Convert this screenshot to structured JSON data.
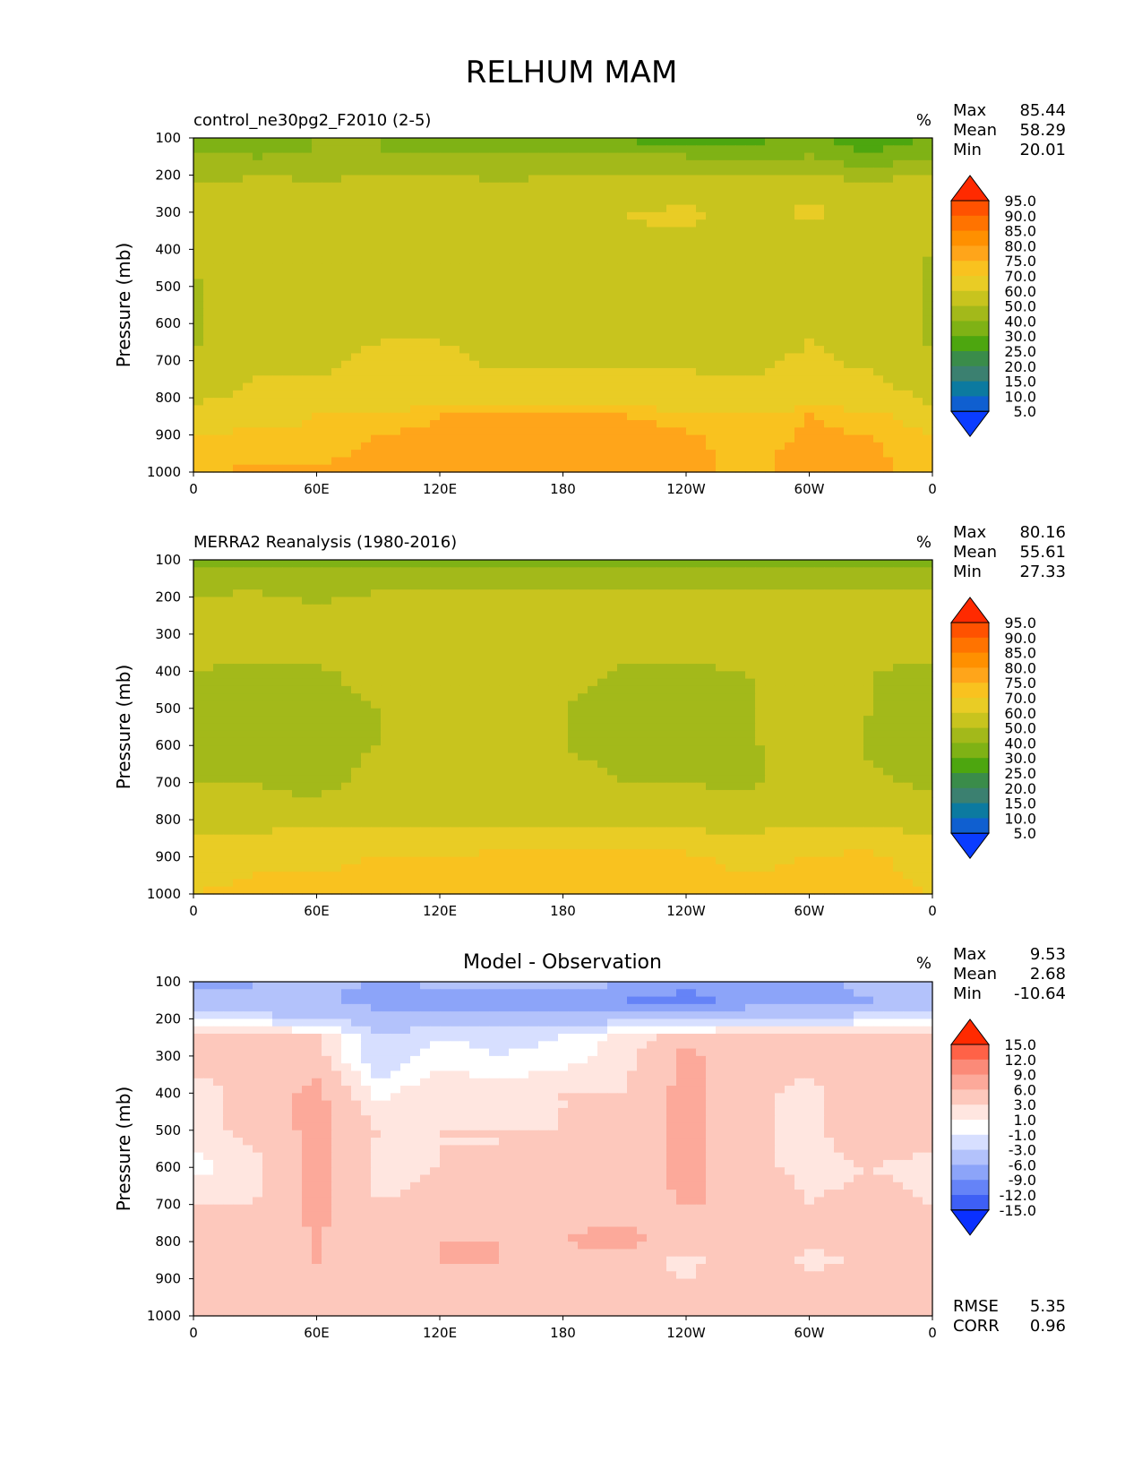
{
  "figure": {
    "title": "RELHUM MAM"
  },
  "panels": [
    {
      "id": "model",
      "title": "control_ne30pg2_F2010 (2-5)",
      "title_align": "left",
      "units": "%",
      "stats": [
        {
          "label": "Max",
          "value": "85.44"
        },
        {
          "label": "Mean",
          "value": "58.29"
        },
        {
          "label": "Min",
          "value": "20.01"
        }
      ],
      "colorbar": {
        "levels": [
          "95.0",
          "90.0",
          "85.0",
          "80.0",
          "75.0",
          "70.0",
          "60.0",
          "50.0",
          "40.0",
          "30.0",
          "25.0",
          "20.0",
          "15.0",
          "10.0",
          "5.0"
        ],
        "colors": [
          "#ff2a00",
          "#ff5200",
          "#ff7300",
          "#ff9000",
          "#ffa51a",
          "#f9c21f",
          "#e9cc25",
          "#c8c41e",
          "#a3b91a",
          "#7fb215",
          "#4da60f",
          "#3a8c4a",
          "#3b8070",
          "#0c7aa0",
          "#0f5fd0",
          "#0a3cff"
        ]
      }
    },
    {
      "id": "obs",
      "title": "MERRA2 Reanalysis (1980-2016)",
      "title_align": "left",
      "units": "%",
      "stats": [
        {
          "label": "Max",
          "value": "80.16"
        },
        {
          "label": "Mean",
          "value": "55.61"
        },
        {
          "label": "Min",
          "value": "27.33"
        }
      ],
      "colorbar": {
        "levels": [
          "95.0",
          "90.0",
          "85.0",
          "80.0",
          "75.0",
          "70.0",
          "60.0",
          "50.0",
          "40.0",
          "30.0",
          "25.0",
          "20.0",
          "15.0",
          "10.0",
          "5.0"
        ],
        "colors": [
          "#ff2a00",
          "#ff5200",
          "#ff7300",
          "#ff9000",
          "#ffa51a",
          "#f9c21f",
          "#e9cc25",
          "#c8c41e",
          "#a3b91a",
          "#7fb215",
          "#4da60f",
          "#3a8c4a",
          "#3b8070",
          "#0c7aa0",
          "#0f5fd0",
          "#0a3cff"
        ]
      }
    },
    {
      "id": "diff",
      "title": "Model - Observation",
      "title_align": "center",
      "units": "%",
      "stats": [
        {
          "label": "Max",
          "value": "9.53"
        },
        {
          "label": "Mean",
          "value": "2.68"
        },
        {
          "label": "Min",
          "value": "-10.64"
        }
      ],
      "extra_stats": [
        {
          "label": "RMSE",
          "value": "5.35"
        },
        {
          "label": "CORR",
          "value": "0.96"
        }
      ],
      "colorbar": {
        "levels": [
          "15.0",
          "12.0",
          "9.0",
          "6.0",
          "3.0",
          "1.0",
          "-1.0",
          "-3.0",
          "-6.0",
          "-9.0",
          "-12.0",
          "-15.0"
        ],
        "colors": [
          "#ff2a00",
          "#ff6247",
          "#fb8a78",
          "#fca99a",
          "#fdc8bc",
          "#ffe6e0",
          "#ffffff",
          "#d7dfff",
          "#b3c2fb",
          "#8ca4f9",
          "#6583f7",
          "#3e5ff5",
          "#0a30ff"
        ]
      }
    }
  ],
  "chart_data": [
    {
      "type": "heatmap",
      "title": "control_ne30pg2_F2010 (2-5)",
      "ylabel": "Pressure (mb)",
      "x_tick_labels": [
        "0",
        "60E",
        "120E",
        "180",
        "120W",
        "60W",
        "0"
      ],
      "y_tick_labels": [
        "100",
        "200",
        "300",
        "400",
        "500",
        "600",
        "700",
        "800",
        "900",
        "1000"
      ],
      "ylim": [
        100,
        1000
      ],
      "y_inverted": true,
      "x": [
        0,
        30,
        60,
        90,
        120,
        150,
        180,
        210,
        240,
        270,
        300,
        330,
        360
      ],
      "y": [
        100,
        150,
        200,
        250,
        300,
        400,
        500,
        600,
        700,
        800,
        850,
        900,
        950,
        1000
      ],
      "z": [
        [
          30,
          35,
          40,
          40,
          38,
          35,
          38,
          28,
          25,
          28,
          30,
          25,
          30
        ],
        [
          40,
          40,
          40,
          40,
          40,
          40,
          40,
          40,
          40,
          35,
          40,
          30,
          40
        ],
        [
          45,
          50,
          48,
          50,
          50,
          48,
          50,
          50,
          50,
          50,
          50,
          48,
          50
        ],
        [
          55,
          55,
          55,
          55,
          55,
          55,
          55,
          55,
          55,
          55,
          55,
          55,
          55
        ],
        [
          58,
          58,
          58,
          58,
          58,
          58,
          58,
          60,
          62,
          58,
          62,
          58,
          58
        ],
        [
          55,
          58,
          50,
          58,
          58,
          58,
          58,
          58,
          58,
          50,
          50,
          55,
          50
        ],
        [
          48,
          58,
          50,
          58,
          58,
          58,
          58,
          58,
          58,
          50,
          50,
          58,
          48
        ],
        [
          48,
          58,
          58,
          58,
          58,
          58,
          58,
          58,
          58,
          50,
          58,
          58,
          48
        ],
        [
          50,
          58,
          58,
          62,
          62,
          58,
          58,
          58,
          58,
          58,
          62,
          58,
          50
        ],
        [
          58,
          62,
          62,
          65,
          65,
          65,
          65,
          65,
          65,
          62,
          65,
          65,
          58
        ],
        [
          65,
          65,
          70,
          72,
          75,
          75,
          75,
          75,
          72,
          70,
          75,
          72,
          65
        ],
        [
          70,
          72,
          72,
          75,
          76,
          78,
          80,
          78,
          76,
          72,
          76,
          75,
          70
        ],
        [
          72,
          74,
          74,
          76,
          78,
          78,
          78,
          78,
          76,
          74,
          76,
          76,
          72
        ],
        [
          74,
          76,
          76,
          76,
          78,
          78,
          78,
          78,
          76,
          74,
          76,
          76,
          74
        ]
      ]
    },
    {
      "type": "heatmap",
      "title": "MERRA2 Reanalysis (1980-2016)",
      "ylabel": "Pressure (mb)",
      "x_tick_labels": [
        "0",
        "60E",
        "120E",
        "180",
        "120W",
        "60W",
        "0"
      ],
      "y_tick_labels": [
        "100",
        "200",
        "300",
        "400",
        "500",
        "600",
        "700",
        "800",
        "900",
        "1000"
      ],
      "ylim": [
        100,
        1000
      ],
      "y_inverted": true,
      "x": [
        0,
        30,
        60,
        90,
        120,
        150,
        180,
        210,
        240,
        270,
        300,
        330,
        360
      ],
      "y": [
        100,
        150,
        200,
        250,
        300,
        400,
        500,
        600,
        700,
        800,
        850,
        900,
        950,
        1000
      ],
      "z": [
        [
          35,
          35,
          38,
          38,
          38,
          38,
          38,
          35,
          35,
          38,
          38,
          38,
          35
        ],
        [
          45,
          45,
          42,
          45,
          45,
          45,
          45,
          45,
          45,
          45,
          45,
          45,
          45
        ],
        [
          50,
          52,
          48,
          52,
          52,
          52,
          52,
          52,
          52,
          52,
          52,
          52,
          52
        ],
        [
          55,
          55,
          52,
          55,
          55,
          55,
          55,
          55,
          55,
          55,
          55,
          55,
          55
        ],
        [
          55,
          58,
          58,
          58,
          58,
          58,
          58,
          58,
          58,
          58,
          58,
          58,
          55
        ],
        [
          50,
          48,
          48,
          55,
          58,
          58,
          55,
          48,
          48,
          50,
          58,
          50,
          48
        ],
        [
          48,
          45,
          45,
          50,
          58,
          58,
          50,
          45,
          45,
          48,
          58,
          50,
          45
        ],
        [
          48,
          45,
          45,
          50,
          58,
          58,
          50,
          45,
          45,
          48,
          58,
          48,
          45
        ],
        [
          50,
          50,
          45,
          55,
          58,
          58,
          55,
          50,
          50,
          48,
          55,
          52,
          48
        ],
        [
          55,
          55,
          58,
          58,
          58,
          58,
          58,
          58,
          58,
          55,
          58,
          58,
          55
        ],
        [
          60,
          62,
          65,
          65,
          65,
          65,
          65,
          65,
          62,
          62,
          65,
          65,
          60
        ],
        [
          65,
          68,
          68,
          70,
          70,
          72,
          74,
          74,
          72,
          68,
          70,
          72,
          65
        ],
        [
          68,
          70,
          70,
          72,
          72,
          72,
          74,
          74,
          72,
          70,
          72,
          72,
          68
        ],
        [
          70,
          72,
          72,
          72,
          72,
          72,
          74,
          74,
          72,
          72,
          72,
          72,
          70
        ]
      ]
    },
    {
      "type": "heatmap",
      "title": "Model - Observation",
      "ylabel": "Pressure (mb)",
      "x_tick_labels": [
        "0",
        "60E",
        "120E",
        "180",
        "120W",
        "60W",
        "0"
      ],
      "y_tick_labels": [
        "100",
        "200",
        "300",
        "400",
        "500",
        "600",
        "700",
        "800",
        "900",
        "1000"
      ],
      "ylim": [
        100,
        1000
      ],
      "y_inverted": true,
      "x": [
        0,
        30,
        60,
        90,
        120,
        150,
        180,
        210,
        240,
        270,
        300,
        330,
        360
      ],
      "y": [
        100,
        150,
        200,
        250,
        300,
        400,
        500,
        600,
        700,
        800,
        850,
        900,
        950,
        1000
      ],
      "z": [
        [
          -7,
          -6,
          -5,
          -6,
          -5,
          -4,
          -4,
          -6,
          -8,
          -6,
          -7,
          -5,
          -6
        ],
        [
          -4,
          -6,
          -5,
          -8,
          -9,
          -9,
          -8,
          -9,
          -10,
          -8,
          -7,
          -6,
          -5
        ],
        [
          -2,
          -2,
          -3,
          -4,
          -5,
          -4,
          -4,
          -4,
          -4,
          -3,
          -3,
          -2,
          -2
        ],
        [
          4,
          4,
          3,
          -3,
          -1,
          -2,
          -1,
          2,
          4,
          4,
          4,
          4,
          4
        ],
        [
          4,
          4,
          4,
          -3,
          0,
          -1,
          0,
          2,
          7,
          4,
          4,
          5,
          4
        ],
        [
          2,
          4,
          7,
          0,
          3,
          2,
          3,
          3,
          7,
          4,
          2,
          6,
          4
        ],
        [
          2,
          4,
          7,
          3,
          3,
          3,
          3,
          4,
          7,
          4,
          2,
          6,
          4
        ],
        [
          0,
          2,
          7,
          2,
          3,
          3,
          4,
          4,
          7,
          4,
          2,
          3,
          2
        ],
        [
          3,
          3,
          7,
          3,
          4,
          4,
          5,
          5,
          6,
          6,
          3,
          4,
          3
        ],
        [
          4,
          4,
          6,
          4,
          6,
          6,
          6,
          7,
          4,
          6,
          4,
          4,
          4
        ],
        [
          4,
          4,
          6,
          4,
          6,
          6,
          5,
          5,
          2,
          6,
          2,
          4,
          4
        ],
        [
          4,
          4,
          4,
          4,
          5,
          4,
          4,
          4,
          3,
          4,
          4,
          4,
          4
        ],
        [
          3,
          4,
          4,
          4,
          4,
          4,
          4,
          4,
          4,
          4,
          4,
          4,
          3
        ],
        [
          4,
          4,
          4,
          4,
          4,
          4,
          4,
          4,
          4,
          4,
          4,
          4,
          4
        ]
      ]
    }
  ]
}
